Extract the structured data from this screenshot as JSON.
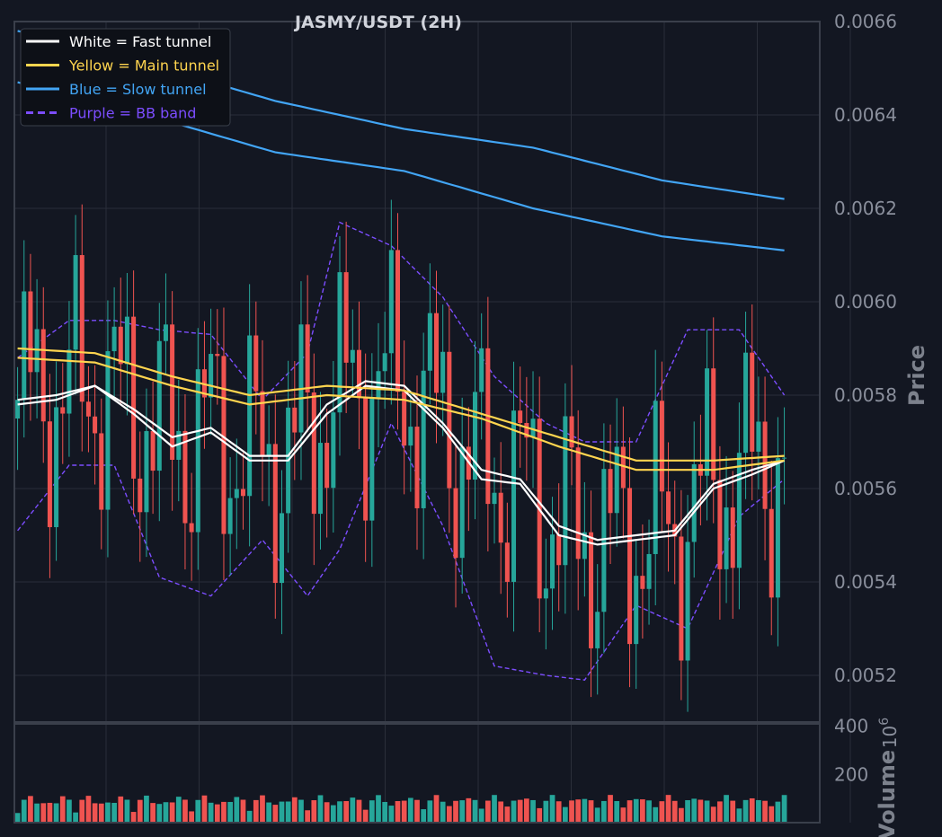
{
  "chart_data": {
    "type": "line",
    "title": "JASMY/USDT (2H)",
    "price_panel": {
      "ylabel": "Price",
      "ylim": [
        0.0051,
        0.0066
      ],
      "yticks": [
        "0.0052",
        "0.0054",
        "0.0056",
        "0.0058",
        "0.0060",
        "0.0062",
        "0.0064",
        "0.0066"
      ],
      "grid": true,
      "legend_position": "top-left",
      "legend": [
        {
          "label": "White = Fast tunnel",
          "color": "#ffffff",
          "style": "solid"
        },
        {
          "label": "Yellow = Main tunnel",
          "color": "#ffd54f",
          "style": "solid"
        },
        {
          "label": "Blue = Slow tunnel",
          "color": "#42a5f5",
          "style": "solid"
        },
        {
          "label": "Purple = BB band",
          "color": "#7c4dff",
          "style": "dashed"
        }
      ],
      "bar_count": 120,
      "series": [
        {
          "name": "White = Fast tunnel",
          "color": "#ffffff",
          "x": [
            0,
            6,
            12,
            18,
            24,
            30,
            36,
            42,
            48,
            54,
            60,
            66,
            72,
            78,
            84,
            90,
            96,
            102,
            108,
            114,
            119
          ],
          "values": [
            0.00579,
            0.0058,
            0.00582,
            0.00577,
            0.00571,
            0.00573,
            0.00567,
            0.00567,
            0.00578,
            0.00583,
            0.00582,
            0.00574,
            0.00564,
            0.00562,
            0.00552,
            0.00549,
            0.0055,
            0.00551,
            0.00561,
            0.00564,
            0.00566
          ]
        },
        {
          "name": "White = Fast tunnel",
          "color": "#ffffff",
          "x": [
            0,
            6,
            12,
            18,
            24,
            30,
            36,
            42,
            48,
            54,
            60,
            66,
            72,
            78,
            84,
            90,
            96,
            102,
            108,
            114,
            119
          ],
          "values": [
            0.00578,
            0.00579,
            0.00582,
            0.00576,
            0.00569,
            0.00572,
            0.00566,
            0.00566,
            0.00576,
            0.00582,
            0.00581,
            0.00573,
            0.00562,
            0.00561,
            0.0055,
            0.00548,
            0.00549,
            0.0055,
            0.0056,
            0.00563,
            0.00566
          ]
        },
        {
          "name": "Yellow = Main tunnel",
          "color": "#ffd54f",
          "x": [
            0,
            12,
            24,
            36,
            48,
            60,
            72,
            84,
            96,
            108,
            119
          ],
          "values": [
            0.0059,
            0.00589,
            0.00584,
            0.0058,
            0.00582,
            0.00581,
            0.00576,
            0.00571,
            0.00566,
            0.00566,
            0.00567
          ]
        },
        {
          "name": "Yellow = Main tunnel",
          "color": "#ffd54f",
          "x": [
            0,
            12,
            24,
            36,
            48,
            60,
            72,
            84,
            96,
            108,
            119
          ],
          "values": [
            0.00588,
            0.00587,
            0.00582,
            0.00578,
            0.0058,
            0.00579,
            0.00575,
            0.00569,
            0.00564,
            0.00564,
            0.00566
          ]
        },
        {
          "name": "Blue = Slow tunnel",
          "color": "#42a5f5",
          "x": [
            0,
            20,
            40,
            60,
            80,
            100,
            119
          ],
          "values": [
            0.00658,
            0.00651,
            0.00643,
            0.00637,
            0.00633,
            0.00626,
            0.00622
          ]
        },
        {
          "name": "Blue = Slow tunnel",
          "color": "#42a5f5",
          "x": [
            0,
            20,
            40,
            60,
            80,
            100,
            119
          ],
          "values": [
            0.00647,
            0.0064,
            0.00632,
            0.00628,
            0.0062,
            0.00614,
            0.00611
          ]
        },
        {
          "name": "Purple = BB band",
          "color": "#7c4dff",
          "style": "dashed",
          "x": [
            0,
            8,
            15,
            22,
            30,
            38,
            45,
            50,
            58,
            66,
            74,
            82,
            88,
            96,
            104,
            112,
            119
          ],
          "values": [
            0.00588,
            0.00596,
            0.00596,
            0.00594,
            0.00593,
            0.00579,
            0.00589,
            0.00617,
            0.00612,
            0.00601,
            0.00584,
            0.00574,
            0.0057,
            0.0057,
            0.00594,
            0.00594,
            0.0058
          ]
        },
        {
          "name": "Purple = BB band",
          "color": "#7c4dff",
          "style": "dashed",
          "x": [
            0,
            8,
            15,
            22,
            30,
            38,
            45,
            50,
            58,
            66,
            74,
            82,
            88,
            96,
            104,
            112,
            119
          ],
          "values": [
            0.00551,
            0.00565,
            0.00565,
            0.00541,
            0.00537,
            0.00549,
            0.00537,
            0.00547,
            0.00574,
            0.00552,
            0.00522,
            0.0052,
            0.00519,
            0.00535,
            0.0053,
            0.00554,
            0.00562
          ]
        }
      ]
    },
    "volume_panel": {
      "ylabel": "Volume",
      "multiplier_label": "10",
      "multiplier_exponent": "6",
      "ylim": [
        0,
        410
      ],
      "yticks": [
        "200",
        "400"
      ],
      "up_color": "#26a69a",
      "down_color": "#ef5350"
    },
    "colors": {
      "background": "#131722",
      "grid": "#2a2e39",
      "up": "#26a69a",
      "down": "#ef5350"
    }
  }
}
